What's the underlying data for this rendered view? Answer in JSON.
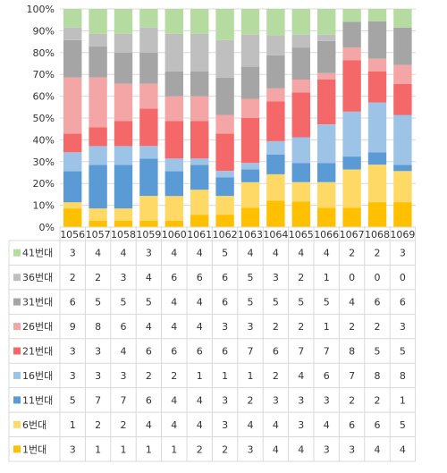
{
  "chart_data": {
    "type": "bar",
    "stacked": "percent",
    "categories": [
      "1056",
      "1057",
      "1058",
      "1059",
      "1060",
      "1061",
      "1062",
      "1063",
      "1064",
      "1065",
      "1066",
      "1067",
      "1068",
      "1069"
    ],
    "y_ticks": [
      "0%",
      "10%",
      "20%",
      "30%",
      "40%",
      "50%",
      "60%",
      "70%",
      "80%",
      "90%",
      "100%"
    ],
    "ylim": [
      0,
      100
    ],
    "grid": true,
    "series": [
      {
        "name": "1번대",
        "color": "#ffc000",
        "values": [
          3,
          1,
          1,
          1,
          1,
          2,
          2,
          3,
          4,
          4,
          3,
          3,
          4,
          4
        ]
      },
      {
        "name": "6번대",
        "color": "#ffd966",
        "values": [
          1,
          2,
          2,
          4,
          4,
          4,
          3,
          4,
          4,
          3,
          4,
          6,
          6,
          5
        ]
      },
      {
        "name": "11번대",
        "color": "#5b9bd5",
        "values": [
          5,
          7,
          7,
          6,
          4,
          4,
          3,
          2,
          3,
          3,
          3,
          2,
          2,
          1
        ]
      },
      {
        "name": "16번대",
        "color": "#9dc3e6",
        "values": [
          3,
          3,
          3,
          2,
          2,
          1,
          1,
          1,
          2,
          4,
          6,
          7,
          8,
          8
        ]
      },
      {
        "name": "21번대",
        "color": "#f4686a",
        "values": [
          3,
          3,
          4,
          6,
          6,
          6,
          6,
          7,
          6,
          7,
          7,
          8,
          5,
          5
        ]
      },
      {
        "name": "26번대",
        "color": "#f4a6a6",
        "values": [
          9,
          8,
          6,
          4,
          4,
          4,
          3,
          3,
          2,
          2,
          1,
          2,
          2,
          3
        ]
      },
      {
        "name": "31번대",
        "color": "#a5a5a5",
        "values": [
          6,
          5,
          5,
          5,
          4,
          4,
          6,
          5,
          5,
          5,
          5,
          4,
          6,
          6
        ]
      },
      {
        "name": "36번대",
        "color": "#bfbfbf",
        "values": [
          2,
          2,
          3,
          4,
          6,
          6,
          6,
          5,
          3,
          2,
          1,
          0,
          0,
          0
        ]
      },
      {
        "name": "41번대",
        "color": "#b5dba0",
        "values": [
          3,
          4,
          4,
          3,
          4,
          4,
          5,
          4,
          4,
          4,
          4,
          2,
          2,
          3
        ]
      }
    ]
  }
}
